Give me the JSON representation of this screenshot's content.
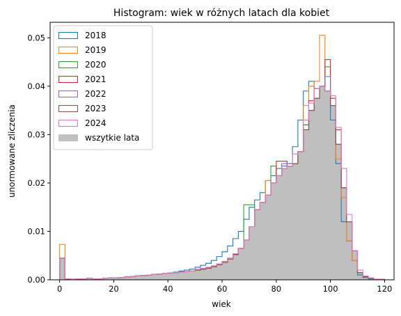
{
  "chart_data": {
    "type": "histogram",
    "title": "Histogram: wiek w różnych latach dla kobiet",
    "xlabel": "wiek",
    "ylabel": "unormowane zliczenia",
    "xlim": [
      -3.5,
      123.5
    ],
    "ylim": [
      0,
      0.0532
    ],
    "xticks": [
      0,
      20,
      40,
      60,
      80,
      100,
      120
    ],
    "yticks": [
      0.0,
      0.01,
      0.02,
      0.03,
      0.04,
      0.05
    ],
    "ytick_labels": [
      "0.00",
      "0.01",
      "0.02",
      "0.03",
      "0.04",
      "0.05"
    ],
    "bin_width": 2,
    "bin_start": 0,
    "legend_position": "upper-left",
    "grid": false,
    "series": [
      {
        "name": "2018",
        "color": "#1f77b4",
        "style": "step"
      },
      {
        "name": "2019",
        "color": "#ff7f0e",
        "style": "step"
      },
      {
        "name": "2020",
        "color": "#2ca02c",
        "style": "step"
      },
      {
        "name": "2021",
        "color": "#d62728",
        "style": "step"
      },
      {
        "name": "2022",
        "color": "#9467bd",
        "style": "step"
      },
      {
        "name": "2023",
        "color": "#8c564b",
        "style": "step"
      },
      {
        "name": "2024",
        "color": "#e377c2",
        "style": "step"
      },
      {
        "name": "wszytkie lata",
        "color": "#bfbfbf",
        "style": "filled"
      }
    ],
    "base_values": [
      0.0045,
      0.0002,
      0.0001,
      0.0002,
      0.0002,
      0.0003,
      0.0002,
      0.0002,
      0.0003,
      0.0004,
      0.0004,
      0.0005,
      0.0006,
      0.0007,
      0.0008,
      0.0009,
      0.001,
      0.0011,
      0.0012,
      0.0013,
      0.0014,
      0.0015,
      0.0016,
      0.0017,
      0.0018,
      0.002,
      0.0022,
      0.0024,
      0.0027,
      0.0031,
      0.0036,
      0.0043,
      0.0052,
      0.0065,
      0.0082,
      0.011,
      0.0145,
      0.016,
      0.0175,
      0.02,
      0.0215,
      0.023,
      0.0235,
      0.024,
      0.0265,
      0.031,
      0.035,
      0.0375,
      0.04,
      0.039,
      0.036,
      0.028,
      0.019,
      0.012,
      0.006,
      0.0015,
      0.0006,
      0.0003,
      0.0001,
      0.0001,
      0.0
    ],
    "series_values": {
      "2018": [
        0.0045,
        0.0002,
        0.0001,
        0.0002,
        0.0002,
        0.0003,
        0.0002,
        0.0002,
        0.0003,
        0.0004,
        0.0004,
        0.0005,
        0.0006,
        0.0007,
        0.0008,
        0.0009,
        0.001,
        0.0011,
        0.0012,
        0.0013,
        0.0014,
        0.0016,
        0.0018,
        0.002,
        0.0022,
        0.0026,
        0.003,
        0.0034,
        0.004,
        0.0048,
        0.0058,
        0.007,
        0.0085,
        0.01,
        0.0125,
        0.015,
        0.0165,
        0.018,
        0.0205,
        0.0215,
        0.023,
        0.0235,
        0.024,
        0.0275,
        0.033,
        0.039,
        0.041,
        0.0395,
        0.04,
        0.039,
        0.033,
        0.024,
        0.012,
        0.008,
        0.004,
        0.001,
        0.0005,
        0.0002,
        0.0001,
        0.0001,
        0.0
      ],
      "2019": [
        0.0073,
        0.0002,
        0.0001,
        0.0002,
        0.0002,
        0.0003,
        0.0002,
        0.0002,
        0.0003,
        0.0004,
        0.0004,
        0.0005,
        0.0006,
        0.0007,
        0.0008,
        0.0009,
        0.001,
        0.0011,
        0.0012,
        0.0013,
        0.0014,
        0.0015,
        0.0016,
        0.0017,
        0.0018,
        0.002,
        0.0022,
        0.0024,
        0.0027,
        0.0031,
        0.0036,
        0.0043,
        0.0052,
        0.0065,
        0.0082,
        0.011,
        0.0145,
        0.016,
        0.0205,
        0.02,
        0.0215,
        0.023,
        0.0235,
        0.024,
        0.0265,
        0.036,
        0.04,
        0.041,
        0.0505,
        0.039,
        0.036,
        0.025,
        0.017,
        0.008,
        0.004,
        0.0015,
        0.0006,
        0.0003,
        0.0001,
        0.0001,
        0.0
      ],
      "2020": [
        0.0045,
        0.0002,
        0.0001,
        0.0002,
        0.0002,
        0.0003,
        0.0002,
        0.0002,
        0.0003,
        0.0004,
        0.0004,
        0.0005,
        0.0006,
        0.0007,
        0.0008,
        0.0009,
        0.001,
        0.0011,
        0.0012,
        0.0013,
        0.0014,
        0.0015,
        0.0016,
        0.0017,
        0.0018,
        0.002,
        0.0022,
        0.0024,
        0.0027,
        0.0031,
        0.0036,
        0.0043,
        0.0052,
        0.0065,
        0.0155,
        0.0155,
        0.0145,
        0.016,
        0.0175,
        0.0235,
        0.0215,
        0.023,
        0.0235,
        0.024,
        0.0265,
        0.031,
        0.035,
        0.0375,
        0.04,
        0.044,
        0.036,
        0.028,
        0.019,
        0.012,
        0.006,
        0.0015,
        0.0006,
        0.0003,
        0.0001,
        0.0001,
        0.0
      ],
      "2021": [
        0.0045,
        0.0002,
        0.0001,
        0.0002,
        0.0002,
        0.0003,
        0.0002,
        0.0002,
        0.0003,
        0.0004,
        0.0004,
        0.0005,
        0.0006,
        0.0007,
        0.0008,
        0.0009,
        0.001,
        0.0011,
        0.0012,
        0.0013,
        0.0014,
        0.0015,
        0.0016,
        0.0017,
        0.0018,
        0.002,
        0.0022,
        0.0024,
        0.0027,
        0.0031,
        0.0036,
        0.0043,
        0.0052,
        0.0065,
        0.0082,
        0.011,
        0.0145,
        0.016,
        0.0175,
        0.02,
        0.0245,
        0.0245,
        0.0235,
        0.024,
        0.0265,
        0.032,
        0.037,
        0.0395,
        0.04,
        0.0455,
        0.0375,
        0.031,
        0.019,
        0.012,
        0.006,
        0.0015,
        0.0006,
        0.0003,
        0.0001,
        0.0001,
        0.0
      ],
      "2022": [
        0.0045,
        0.0002,
        0.0001,
        0.0002,
        0.0002,
        0.0003,
        0.0002,
        0.0002,
        0.0003,
        0.0004,
        0.0004,
        0.0005,
        0.0006,
        0.0007,
        0.0008,
        0.0009,
        0.001,
        0.0011,
        0.0012,
        0.0013,
        0.0014,
        0.0015,
        0.0016,
        0.0017,
        0.0018,
        0.002,
        0.0022,
        0.0024,
        0.0027,
        0.0031,
        0.0036,
        0.0043,
        0.0052,
        0.0065,
        0.0082,
        0.011,
        0.0145,
        0.016,
        0.0175,
        0.02,
        0.0215,
        0.024,
        0.0235,
        0.024,
        0.0265,
        0.031,
        0.035,
        0.0375,
        0.04,
        0.042,
        0.036,
        0.028,
        0.019,
        0.012,
        0.006,
        0.0015,
        0.0006,
        0.0003,
        0.0001,
        0.0001,
        0.0
      ],
      "2023": [
        0.0045,
        0.0002,
        0.0001,
        0.0002,
        0.0002,
        0.0003,
        0.0002,
        0.0002,
        0.0003,
        0.0004,
        0.0004,
        0.0005,
        0.0006,
        0.0007,
        0.0008,
        0.0009,
        0.001,
        0.0011,
        0.0012,
        0.0013,
        0.0014,
        0.0015,
        0.0016,
        0.0017,
        0.0018,
        0.002,
        0.0022,
        0.0024,
        0.0027,
        0.0031,
        0.0036,
        0.0043,
        0.0052,
        0.0065,
        0.0082,
        0.011,
        0.0145,
        0.016,
        0.0175,
        0.02,
        0.0215,
        0.023,
        0.0235,
        0.024,
        0.0265,
        0.031,
        0.035,
        0.0375,
        0.04,
        0.039,
        0.036,
        0.028,
        0.019,
        0.012,
        0.006,
        0.0015,
        0.0006,
        0.0003,
        0.0001,
        0.0001,
        0.0
      ],
      "2024": [
        0.0045,
        0.0002,
        0.0001,
        0.0002,
        0.0002,
        0.0003,
        0.0002,
        0.0002,
        0.0003,
        0.0004,
        0.0004,
        0.0005,
        0.0006,
        0.0007,
        0.0008,
        0.0009,
        0.001,
        0.0011,
        0.0012,
        0.0013,
        0.0014,
        0.0015,
        0.0016,
        0.0017,
        0.0018,
        0.0022,
        0.0024,
        0.0026,
        0.0029,
        0.0033,
        0.0038,
        0.0045,
        0.0054,
        0.0065,
        0.0082,
        0.011,
        0.0145,
        0.016,
        0.0175,
        0.02,
        0.0215,
        0.023,
        0.0235,
        0.026,
        0.0265,
        0.033,
        0.0365,
        0.0395,
        0.04,
        0.039,
        0.038,
        0.0315,
        0.023,
        0.0135,
        0.006,
        0.002,
        0.0008,
        0.0004,
        0.0001,
        0.0001,
        0.0
      ]
    }
  }
}
